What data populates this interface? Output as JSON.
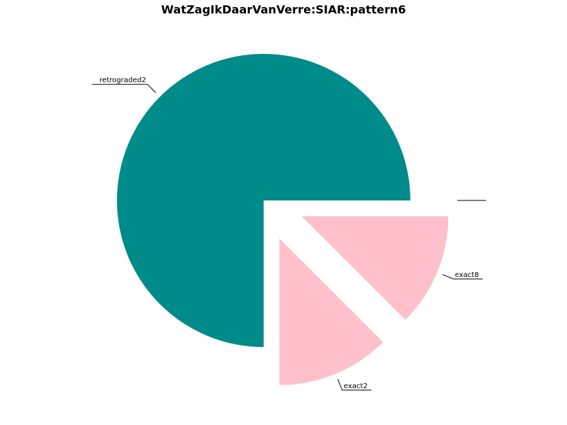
{
  "chart_data": {
    "type": "pie",
    "title": "WatZagIkDaarVanVerre:SIAR:pattern6",
    "start_angle_deg": 0,
    "direction": "clockwise",
    "labels": [
      "",
      "exact8",
      "exact2",
      "retrograded2"
    ],
    "values": [
      0,
      12.5,
      12.5,
      75
    ],
    "colors": [
      "#ffc0cb",
      "#ffc0cb",
      "#ffc0cb",
      "#008b8b"
    ],
    "exploded": [
      true,
      true,
      true,
      false
    ]
  }
}
